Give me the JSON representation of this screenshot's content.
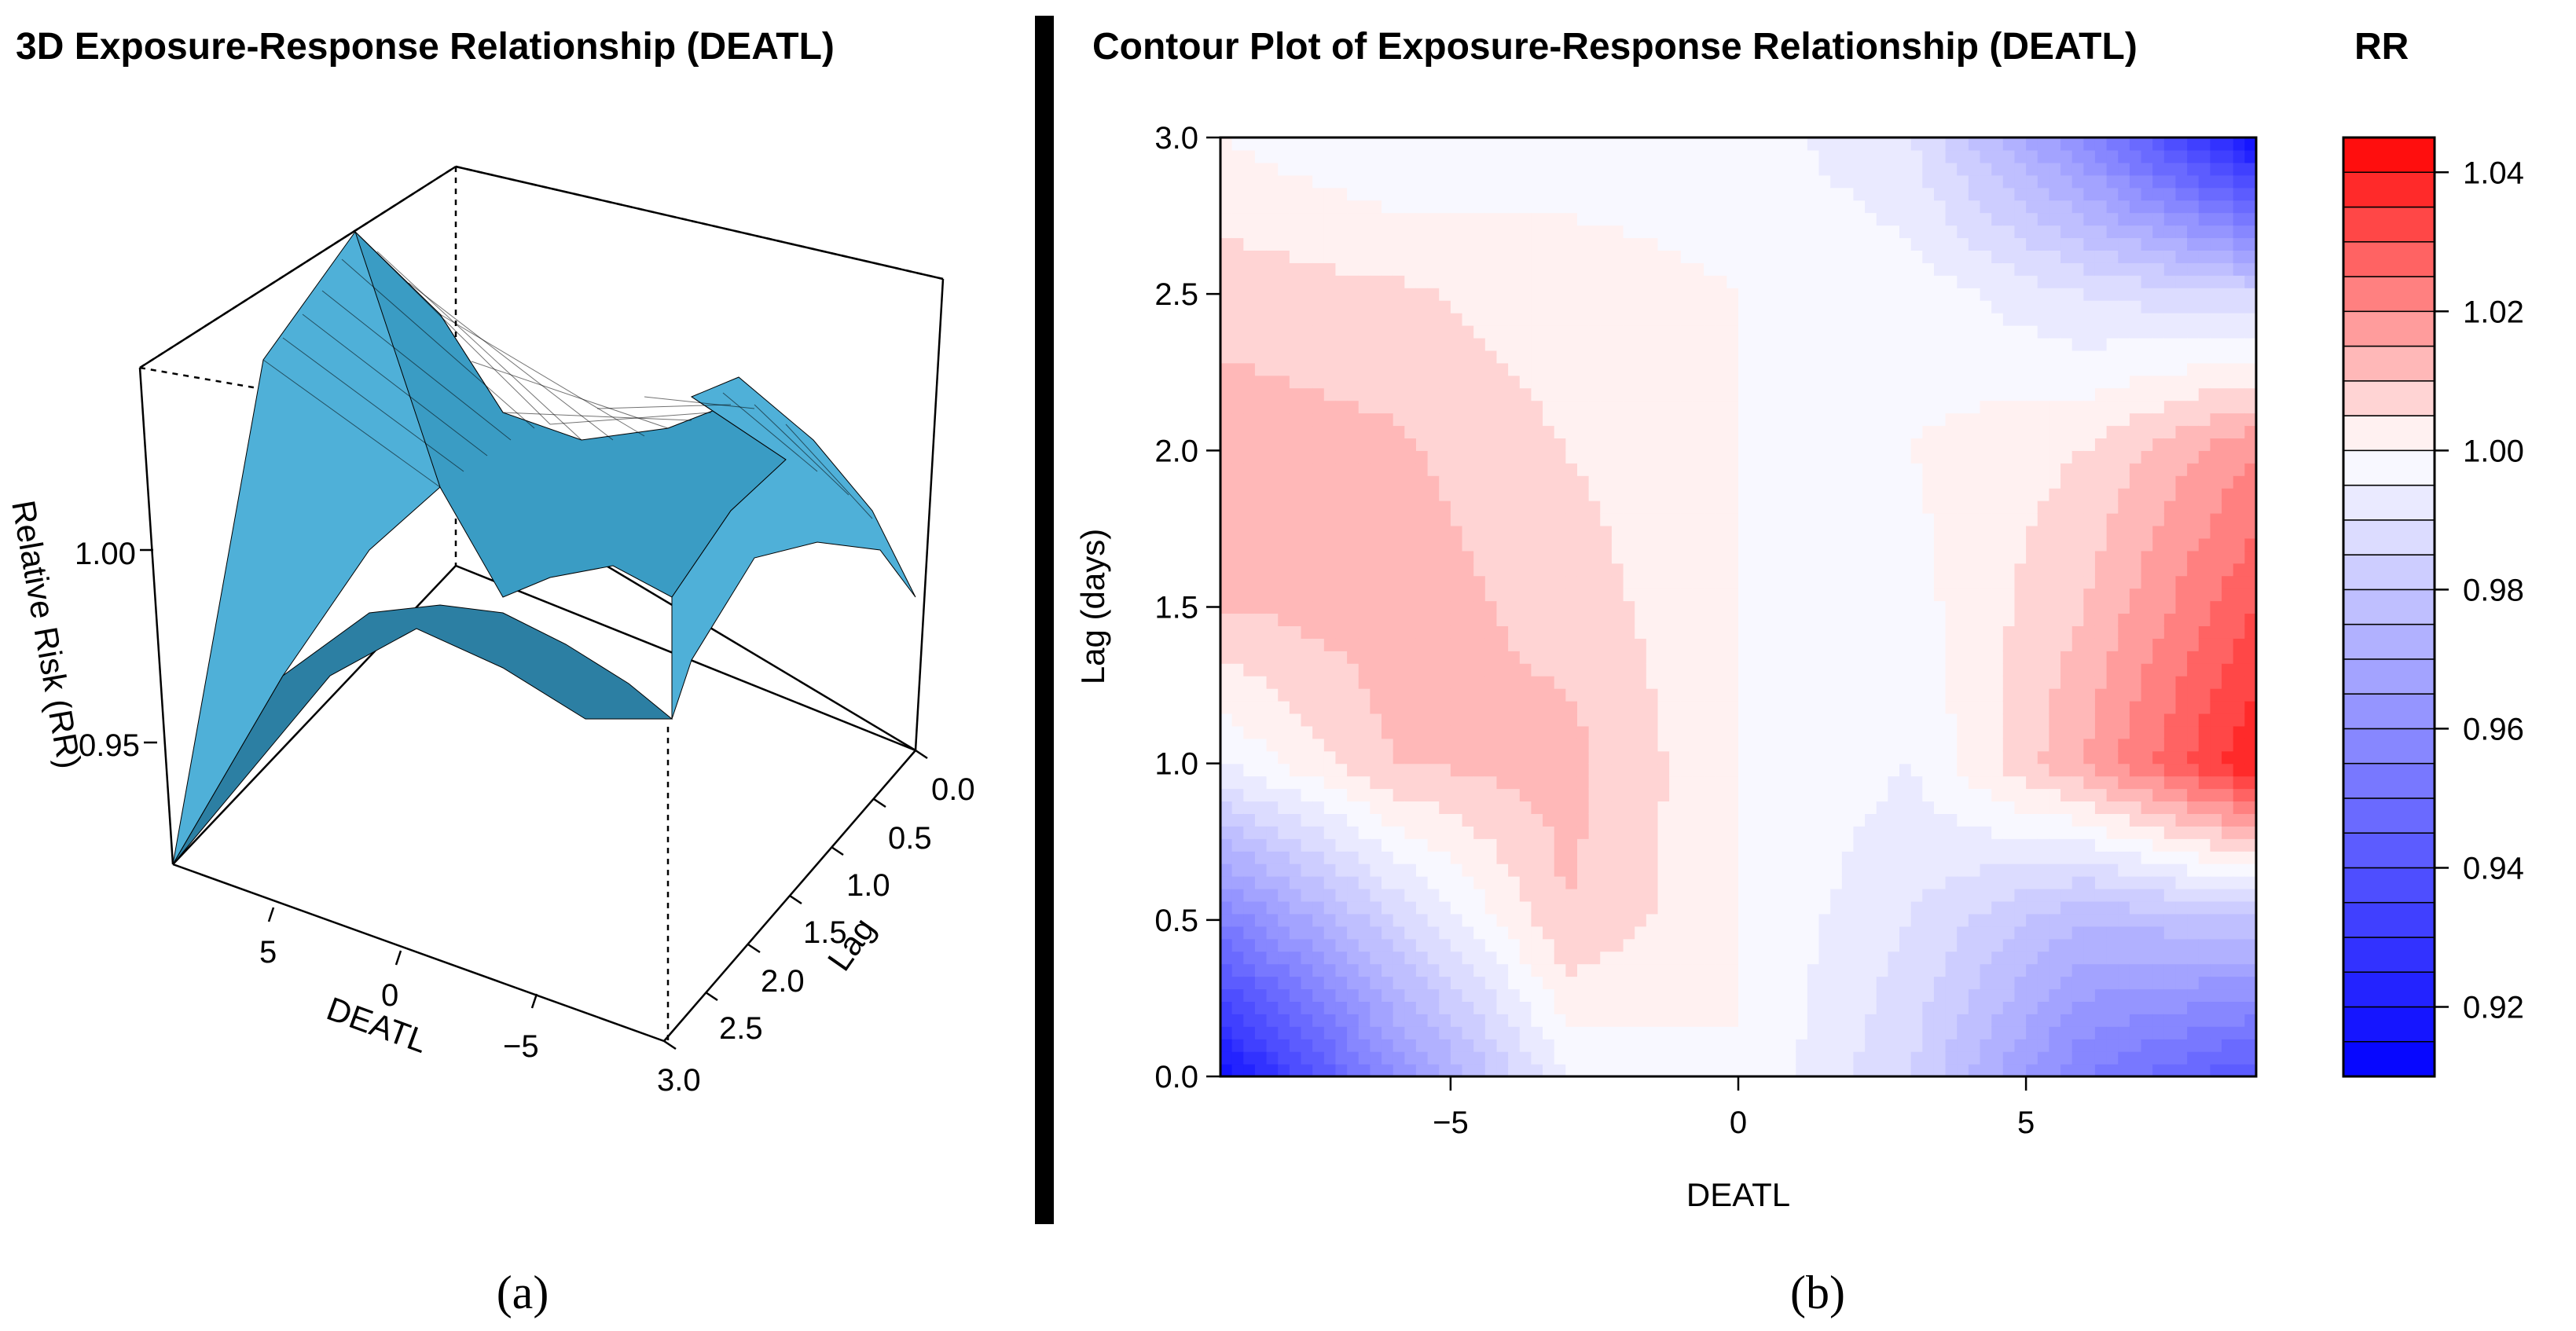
{
  "panels": {
    "a_label": "(a)",
    "b_label": "(b)"
  },
  "chart_data": [
    {
      "type": "surface3d",
      "title": "3D Exposure-Response Relationship (DEATL)",
      "xlabel": "DEATL",
      "ylabel": "Lag",
      "zlabel": "Relative Risk (RR)",
      "x_ticks": [
        "5",
        "0",
        "−5"
      ],
      "lag_ticks": [
        "0.0",
        "0.5",
        "1.0",
        "1.5",
        "2.0",
        "2.5",
        "3.0"
      ],
      "z_ticks": [
        "1.00",
        "0.95"
      ],
      "x_range": [
        -9,
        9
      ],
      "lag_range": [
        0,
        3
      ],
      "z_range": [
        0.91,
        1.045
      ],
      "surface_color": "#4fb0d8",
      "edge_color": "#000000"
    },
    {
      "type": "heatmap",
      "title": "Contour Plot of Exposure-Response Relationship (DEATL)",
      "xlabel": "DEATL",
      "ylabel": "Lag (days)",
      "x_range": [
        -9,
        9
      ],
      "y_range": [
        0,
        3
      ],
      "x_ticks": [
        -5,
        0,
        5
      ],
      "x_tick_labels": [
        "−5",
        "0",
        "5"
      ],
      "y_ticks": [
        0.0,
        0.5,
        1.0,
        1.5,
        2.0,
        2.5,
        3.0
      ],
      "y_tick_labels": [
        "0.0",
        "0.5",
        "1.0",
        "1.5",
        "2.0",
        "2.5",
        "3.0"
      ],
      "x_grid": [
        -9,
        -6,
        -3,
        0,
        3,
        6,
        9
      ],
      "y_grid": [
        0.0,
        0.5,
        1.0,
        1.5,
        2.0,
        2.5,
        3.0
      ],
      "z_grid": [
        [
          0.915,
          0.96,
          0.995,
          1.0,
          0.985,
          0.955,
          0.94
        ],
        [
          0.955,
          0.985,
          1.01,
          1.0,
          0.99,
          0.975,
          0.98
        ],
        [
          0.995,
          1.01,
          1.012,
          1.0,
          0.995,
          1.015,
          1.04
        ],
        [
          1.01,
          1.013,
          1.008,
          1.0,
          0.998,
          1.01,
          1.03
        ],
        [
          1.013,
          1.011,
          1.005,
          1.0,
          1.0,
          1.005,
          1.02
        ],
        [
          1.008,
          1.006,
          1.002,
          1.0,
          0.998,
          0.99,
          0.985
        ],
        [
          1.0,
          0.995,
          0.998,
          0.998,
          0.99,
          0.96,
          0.915
        ]
      ],
      "legend": {
        "title": "RR",
        "levels_min": 0.91,
        "levels_max": 1.045,
        "level_step": 0.005,
        "ticks": [
          1.04,
          1.02,
          1.0,
          0.98,
          0.96,
          0.94,
          0.92
        ],
        "tick_labels": [
          "1.04",
          "1.02",
          "1.00",
          "0.98",
          "0.96",
          "0.94",
          "0.92"
        ]
      },
      "low_color": "#0000ff",
      "mid_color": "#ffffff",
      "high_color": "#ff0000"
    }
  ]
}
